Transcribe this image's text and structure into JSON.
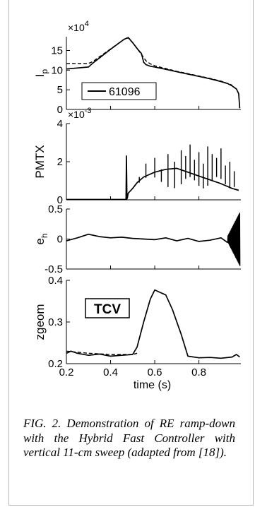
{
  "caption": "FIG. 2. Demonstration of RE ramp-down with the Hybrid Fast Controller with vertical 11-cm sweep (adapted from [18]).",
  "chart_data": [
    {
      "type": "line",
      "panel": "Ip",
      "ylabel": "I",
      "ylabel_sub": "p",
      "multiplier": "×10",
      "multiplier_exp": "4",
      "ylim": [
        0,
        18.5
      ],
      "yticks": [
        0,
        5,
        10,
        15
      ],
      "xlim": [
        0.2,
        0.99
      ],
      "legend": "61096",
      "legend_placement": "bottom-left",
      "series": [
        {
          "style": "solid",
          "x": [
            0.2,
            0.3,
            0.32,
            0.4,
            0.46,
            0.48,
            0.5,
            0.52,
            0.54,
            0.55,
            0.56,
            0.58,
            0.6,
            0.65,
            0.7,
            0.75,
            0.8,
            0.85,
            0.9,
            0.93,
            0.95,
            0.97,
            0.98,
            0.985
          ],
          "y": [
            10.3,
            10.8,
            11.8,
            15.3,
            17.8,
            18.3,
            17.0,
            15.5,
            14.2,
            12.0,
            11.4,
            11.0,
            10.8,
            10.2,
            9.6,
            9.0,
            8.4,
            7.8,
            7.1,
            6.6,
            6.0,
            5.2,
            4.0,
            0.3
          ]
        },
        {
          "style": "dashed",
          "x": [
            0.2,
            0.3,
            0.32,
            0.4,
            0.46,
            0.48,
            0.5,
            0.52,
            0.54,
            0.56,
            0.58,
            0.6,
            0.65,
            0.7,
            0.75,
            0.8,
            0.85,
            0.9,
            0.95
          ],
          "y": [
            11.7,
            11.7,
            12.2,
            15.4,
            17.8,
            18.2,
            17.0,
            15.5,
            14.0,
            12.4,
            11.6,
            11.1,
            10.4,
            9.7,
            9.1,
            8.5,
            7.9,
            7.2,
            6.2
          ]
        }
      ]
    },
    {
      "type": "line",
      "panel": "PMTX",
      "ylabel": "PMTX",
      "multiplier": "×10",
      "multiplier_exp": "-3",
      "ylim": [
        0,
        4
      ],
      "yticks": [
        0,
        2,
        4
      ],
      "xlim": [
        0.2,
        0.99
      ],
      "series": [
        {
          "style": "solid",
          "x": [
            0.2,
            0.47,
            0.472,
            0.474,
            0.476,
            0.48,
            0.5,
            0.52,
            0.55,
            0.6,
            0.65,
            0.7,
            0.75,
            0.8,
            0.85,
            0.9,
            0.95,
            0.98
          ],
          "y": [
            0.02,
            0.02,
            2.3,
            0.05,
            0.1,
            0.35,
            0.6,
            0.9,
            1.2,
            1.45,
            1.6,
            1.65,
            1.45,
            1.25,
            1.05,
            0.85,
            0.6,
            0.5
          ]
        }
      ]
    },
    {
      "type": "line",
      "panel": "eh",
      "ylabel": "e",
      "ylabel_sub": "h",
      "ylim": [
        -0.5,
        0.5
      ],
      "yticks": [
        -0.5,
        0,
        0.5
      ],
      "ytick_labels": [
        "-0.5",
        "0",
        "0.5"
      ],
      "xlim": [
        0.2,
        0.99
      ],
      "series": [
        {
          "style": "solid",
          "x": [
            0.2,
            0.25,
            0.3,
            0.35,
            0.4,
            0.45,
            0.5,
            0.55,
            0.6,
            0.65,
            0.7,
            0.75,
            0.8,
            0.85,
            0.9,
            0.93
          ],
          "y": [
            -0.03,
            0.02,
            0.08,
            0.04,
            0.02,
            0.03,
            0.01,
            0.0,
            -0.01,
            0.02,
            -0.03,
            0.01,
            -0.04,
            -0.02,
            0.02,
            -0.06
          ]
        }
      ]
    },
    {
      "type": "line",
      "panel": "zgeom",
      "ylabel": "zgeom",
      "ylim": [
        0.2,
        0.4
      ],
      "yticks": [
        0.2,
        0.3,
        0.4
      ],
      "xlim": [
        0.2,
        0.99
      ],
      "xticks": [
        0.2,
        0.4,
        0.6,
        0.8
      ],
      "xlabel": "time (s)",
      "annotation": "TCV",
      "series": [
        {
          "style": "solid",
          "x": [
            0.2,
            0.22,
            0.25,
            0.3,
            0.35,
            0.4,
            0.45,
            0.5,
            0.52,
            0.55,
            0.58,
            0.6,
            0.62,
            0.65,
            0.68,
            0.72,
            0.75,
            0.8,
            0.85,
            0.9,
            0.95,
            0.97,
            0.985
          ],
          "y": [
            0.225,
            0.23,
            0.225,
            0.22,
            0.223,
            0.218,
            0.22,
            0.222,
            0.24,
            0.3,
            0.355,
            0.377,
            0.372,
            0.365,
            0.33,
            0.27,
            0.218,
            0.214,
            0.215,
            0.213,
            0.216,
            0.222,
            0.216
          ]
        },
        {
          "style": "dashed",
          "x": [
            0.2,
            0.3,
            0.4,
            0.5,
            0.52
          ],
          "y": [
            0.23,
            0.225,
            0.222,
            0.222,
            0.225
          ]
        }
      ]
    }
  ]
}
